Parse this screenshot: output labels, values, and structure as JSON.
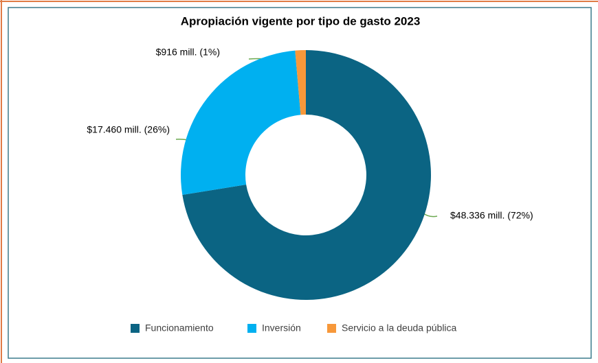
{
  "chart_data": {
    "type": "donut",
    "title": "Apropiación vigente por tipo de gasto 2023",
    "categories": [
      "Funcionamiento",
      "Inversión",
      "Servicio a la deuda  pública"
    ],
    "values": [
      48336,
      17460,
      916
    ],
    "value_labels": [
      "$48.336 mill. (72%)",
      "$17.460 mill. (26%)",
      "$916 mill. (1%)"
    ],
    "colors": [
      "#0b6483",
      "#00b0f0",
      "#f7983a"
    ],
    "legend": "bottom"
  }
}
